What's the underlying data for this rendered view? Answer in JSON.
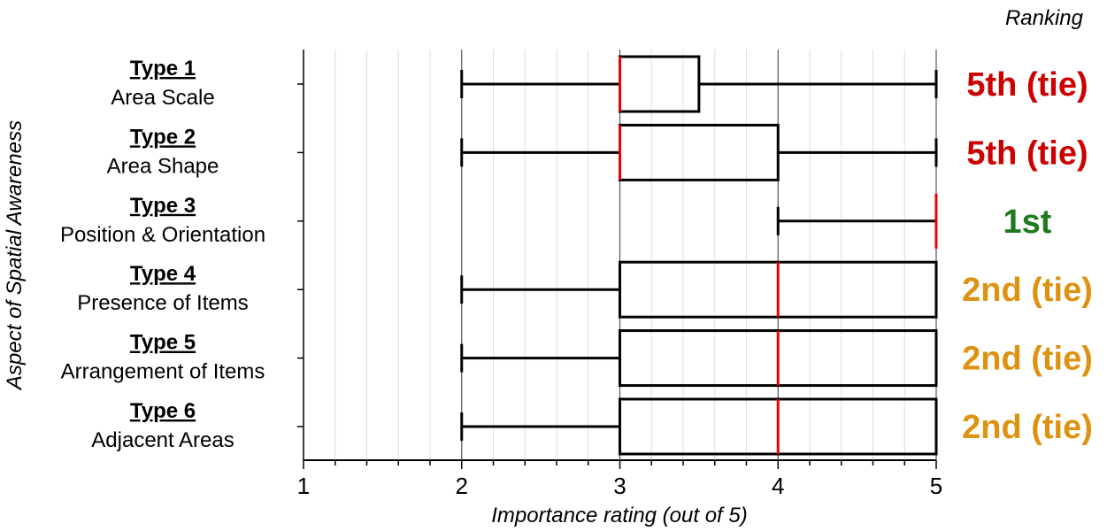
{
  "chart_data": {
    "type": "boxplot",
    "orientation": "horizontal",
    "xlabel": "Importance rating (out of 5)",
    "ylabel": "Aspect of Spatial Awareness",
    "xlim": [
      1,
      5
    ],
    "xticks": [
      "1",
      "2",
      "3",
      "4",
      "5"
    ],
    "minor_grid_step": 0.2,
    "grid": true,
    "ranking_header": "Ranking",
    "categories": [
      {
        "title": "Type 1",
        "name": "Area Scale",
        "min": 2,
        "q1": 3,
        "median": 3,
        "q3": 3.5,
        "max": 5,
        "rank": "5th (tie)",
        "rank_color": "#cc0000"
      },
      {
        "title": "Type 2",
        "name": "Area Shape",
        "min": 2,
        "q1": 3,
        "median": 3,
        "q3": 4,
        "max": 5,
        "rank": "5th (tie)",
        "rank_color": "#cc0000"
      },
      {
        "title": "Type 3",
        "name": "Position & Orientation",
        "min": 4,
        "q1": 5,
        "median": 5,
        "q3": 5,
        "max": 5,
        "rank": "1st",
        "rank_color": "#1f7a1f"
      },
      {
        "title": "Type 4",
        "name": "Presence of Items",
        "min": 2,
        "q1": 3,
        "median": 4,
        "q3": 5,
        "max": 5,
        "rank": "2nd (tie)",
        "rank_color": "#dd9311"
      },
      {
        "title": "Type 5",
        "name": "Arrangement of Items",
        "min": 2,
        "q1": 3,
        "median": 4,
        "q3": 5,
        "max": 5,
        "rank": "2nd (tie)",
        "rank_color": "#dd9311"
      },
      {
        "title": "Type 6",
        "name": "Adjacent Areas",
        "min": 2,
        "q1": 3,
        "median": 4,
        "q3": 5,
        "max": 5,
        "rank": "2nd (tie)",
        "rank_color": "#dd9311"
      }
    ],
    "median_color": "#ee0000"
  }
}
